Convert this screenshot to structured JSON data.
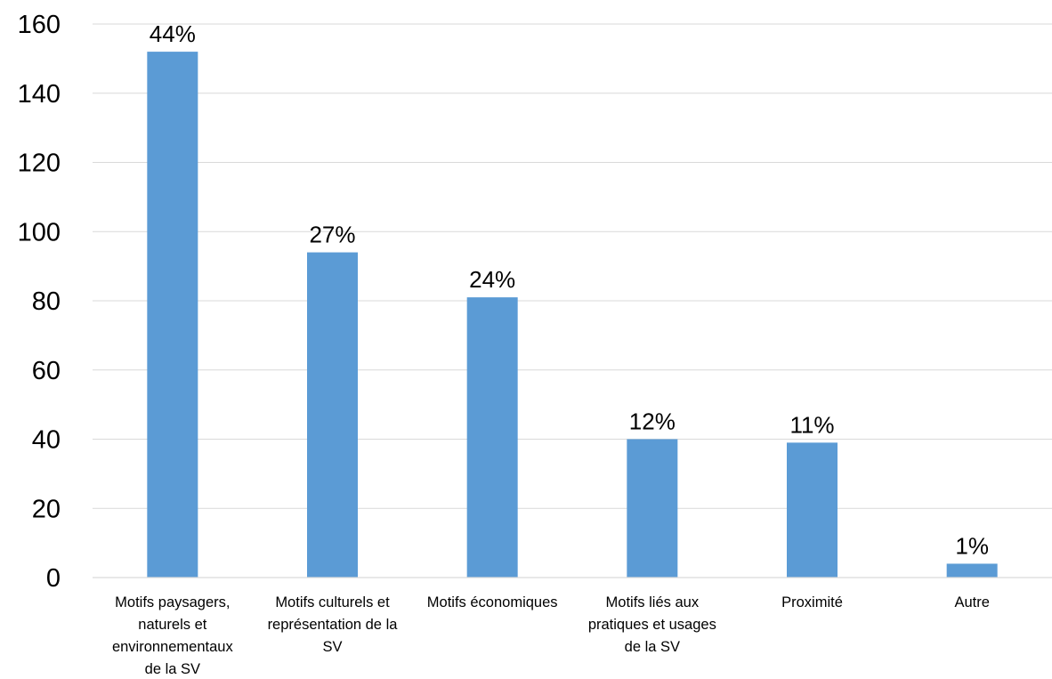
{
  "chart_data": {
    "type": "bar",
    "categories": [
      [
        "Motifs paysagers,",
        "naturels et",
        "environnementaux",
        "de la SV"
      ],
      [
        "Motifs culturels et",
        "représentation de la",
        "SV"
      ],
      [
        "Motifs économiques"
      ],
      [
        "Motifs liés aux",
        "pratiques et usages",
        "de la SV"
      ],
      [
        "Proximité"
      ],
      [
        "Autre"
      ]
    ],
    "values": [
      152,
      94,
      81,
      40,
      39,
      4
    ],
    "data_labels": [
      "44%",
      "27%",
      "24%",
      "12%",
      "11%",
      "1%"
    ],
    "y_ticks": [
      "0",
      "20",
      "40",
      "60",
      "80",
      "100",
      "120",
      "140",
      "160"
    ],
    "ylim": [
      0,
      160
    ],
    "grid": true,
    "bar_color": "#5B9BD5",
    "grid_color": "#D9D9D9"
  }
}
